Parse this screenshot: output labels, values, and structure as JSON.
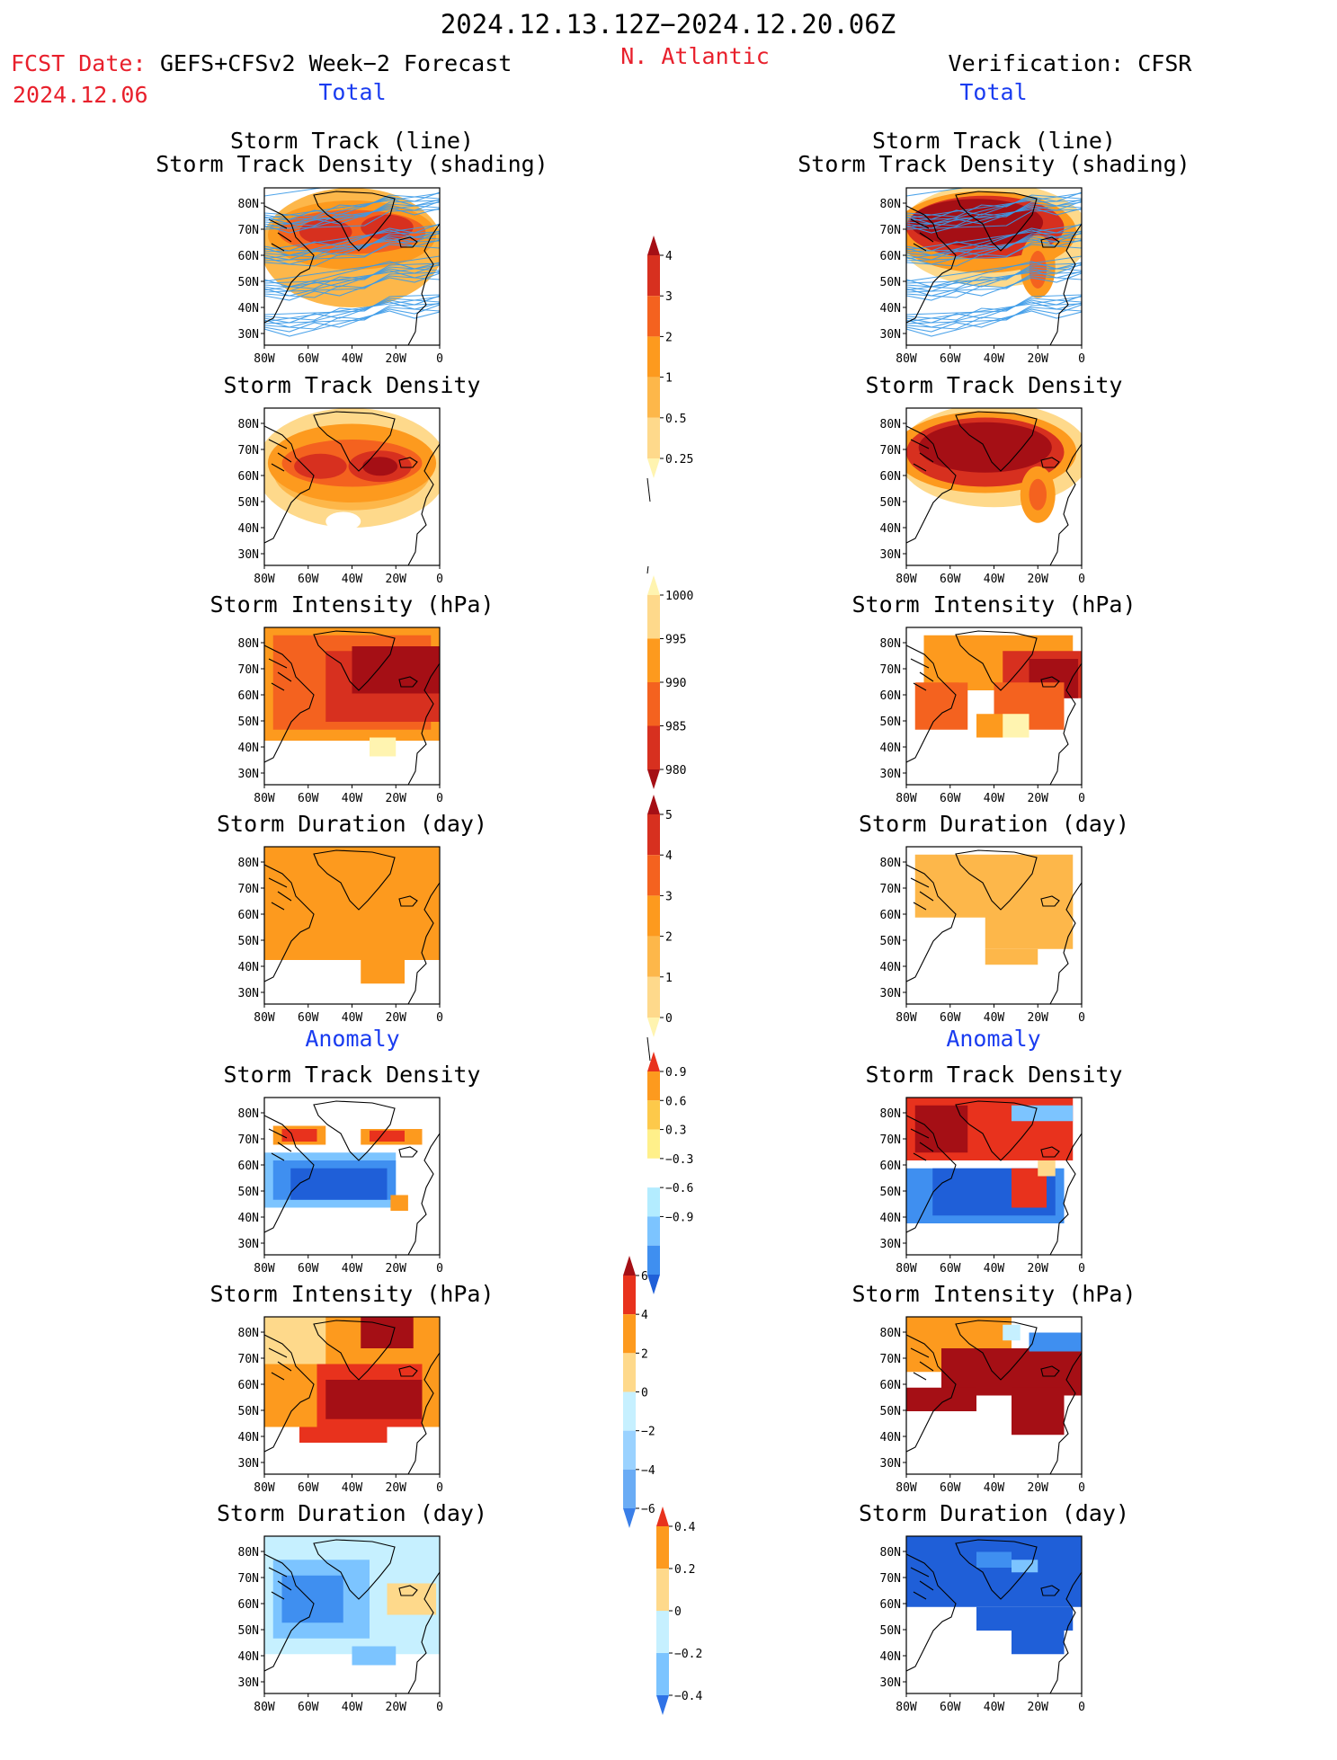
{
  "header": {
    "period": "2024.12.13.12Z−2024.12.20.06Z",
    "region": "N. Atlantic",
    "fcst_label": "FCST Date:",
    "fcst_product": "GEFS+CFSv2 Week−2 Forecast",
    "fcst_date": "2024.12.06",
    "verif": "Verification: CFSR",
    "total_label": "Total",
    "anomaly_label": "Anomaly"
  },
  "axes": {
    "lat_ticks": [
      "80N",
      "70N",
      "60N",
      "50N",
      "40N",
      "30N"
    ],
    "lon_ticks": [
      "80W",
      "60W",
      "40W",
      "20W",
      "0"
    ]
  },
  "panels": {
    "total": [
      {
        "title1": "Storm Track (line)",
        "title2": "Storm Track Density (shading)"
      },
      {
        "title1": "Storm Track Density"
      },
      {
        "title1": "Storm Intensity (hPa)"
      },
      {
        "title1": "Storm Duration (day)"
      }
    ],
    "anomaly": [
      {
        "title1": "Storm Track Density"
      },
      {
        "title1": "Storm Intensity (hPa)"
      },
      {
        "title1": "Storm Duration (day)"
      }
    ]
  },
  "colorbars": [
    {
      "labels": [
        "4",
        "3",
        "2",
        "1",
        "0.5",
        "0.25"
      ],
      "colors": [
        "#a50f15",
        "#d7301f",
        "#f4621f",
        "#fd9a1e",
        "#fdb74a",
        "#fed98b",
        "#fff4b0"
      ],
      "tail": "bottom"
    },
    {
      "labels": [
        "1000",
        "995",
        "990",
        "985",
        "980"
      ],
      "colors": [
        "#fff4b0",
        "#fed98b",
        "#fd9a1e",
        "#f4621f",
        "#d7301f",
        "#a50f15"
      ],
      "tail": "top"
    },
    {
      "labels": [
        "5",
        "4",
        "3",
        "2",
        "1",
        "0"
      ],
      "colors": [
        "#a50f15",
        "#d7301f",
        "#f4621f",
        "#fd9a1e",
        "#fdb74a",
        "#fed98b",
        "#fff4b0"
      ],
      "tail": "bottom"
    },
    {
      "labels": [
        "0.9",
        "0.6",
        "0.3",
        "−0.3",
        "−0.6",
        "−0.9"
      ],
      "colors": [
        "#e8321d",
        "#fd9a1e",
        "#fdc94a",
        "#fff08a",
        "#ffffff",
        "#b3ecff",
        "#7cc4ff",
        "#3f8ff0",
        "#1f5fd8"
      ]
    },
    {
      "labels": [
        "6",
        "4",
        "2",
        "0",
        "−2",
        "−4",
        "−6"
      ],
      "colors": [
        "#a50f15",
        "#e8321d",
        "#fd9a1e",
        "#fed98b",
        "#c6f0ff",
        "#9ad2ff",
        "#6aacf5",
        "#3a7fe8"
      ]
    },
    {
      "labels": [
        "0.4",
        "0.2",
        "0",
        "−0.2",
        "−0.4"
      ],
      "colors": [
        "#e8321d",
        "#fd9a1e",
        "#fed98b",
        "#c6f0ff",
        "#7cc4ff",
        "#2f72e6"
      ]
    }
  ],
  "chart_data": {
    "type": "heatmap",
    "lon_range": [
      -80,
      0
    ],
    "lat_range": [
      25,
      85
    ],
    "legend_placement": "center column between forecast and verification maps"
  }
}
